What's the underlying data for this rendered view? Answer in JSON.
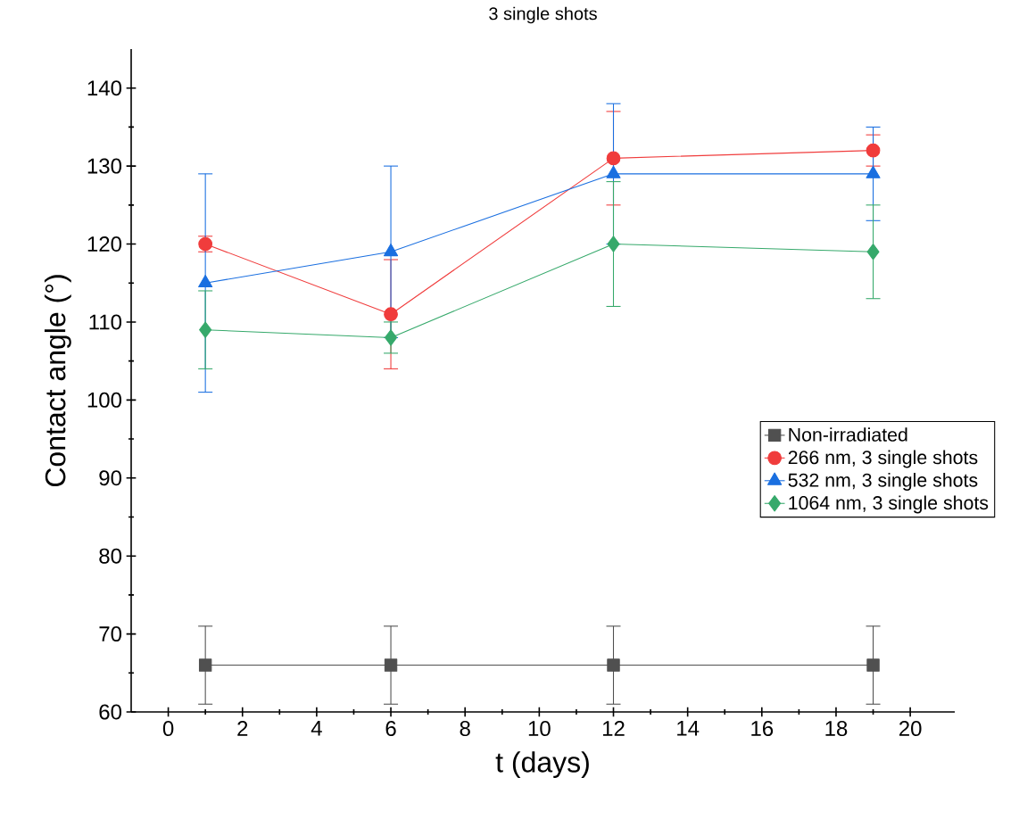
{
  "chart_data": {
    "type": "line",
    "title": "3 single shots",
    "xlabel": "t (days)",
    "ylabel": "Contact angle (°)",
    "x": [
      1,
      6,
      12,
      19
    ],
    "series": [
      {
        "name": "Non-irradiated",
        "color": "#505050",
        "marker": "square",
        "values": [
          66,
          66,
          66,
          66
        ],
        "errors": [
          5,
          5,
          5,
          5
        ]
      },
      {
        "name": "266 nm, 3 single shots",
        "color": "#f03c3c",
        "marker": "circle",
        "values": [
          120,
          111,
          131,
          132
        ],
        "errors": [
          1,
          7,
          6,
          2
        ]
      },
      {
        "name": "532 nm, 3 single shots",
        "color": "#1a6fe0",
        "marker": "triangle",
        "values": [
          115,
          119,
          129,
          129
        ],
        "errors": [
          14,
          11,
          9,
          6
        ]
      },
      {
        "name": "1064 nm, 3 single shots",
        "color": "#36a96b",
        "marker": "diamond",
        "values": [
          109,
          108,
          120,
          119
        ],
        "errors": [
          5,
          2,
          8,
          6
        ]
      }
    ],
    "xlim": [
      -1,
      21.2
    ],
    "ylim": [
      60,
      145
    ],
    "xticks": [
      0,
      2,
      4,
      6,
      8,
      10,
      12,
      14,
      16,
      18,
      20
    ],
    "yticks": [
      60,
      70,
      80,
      90,
      100,
      110,
      120,
      130,
      140
    ],
    "line_style": "solid",
    "legend": "right",
    "grid": false
  }
}
